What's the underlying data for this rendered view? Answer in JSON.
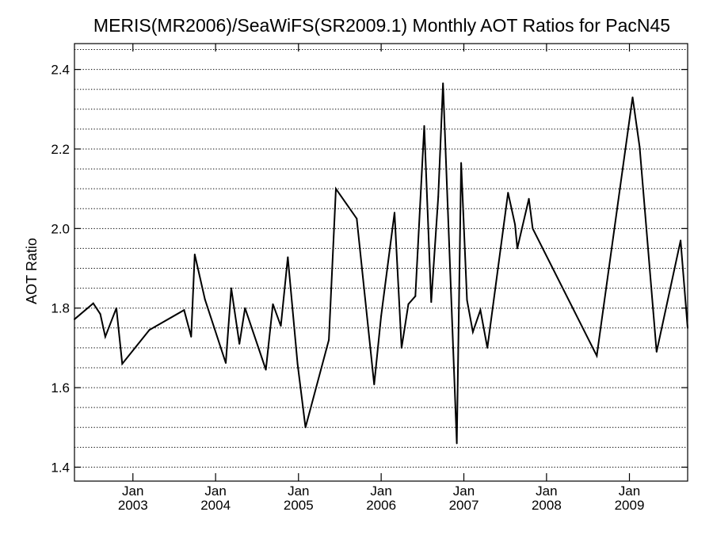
{
  "chart_data": {
    "type": "line",
    "title": "MERIS(MR2006)/SeaWiFS(SR2009.1) Monthly AOT Ratios for PacN45",
    "xlabel": "",
    "ylabel": "AOT Ratio",
    "xlim": [
      "2002-04-18",
      "2009-09-15"
    ],
    "ylim": [
      1.365,
      2.465
    ],
    "yticks": [
      1.4,
      1.6,
      1.8,
      2.0,
      2.2,
      2.4
    ],
    "ytick_labels": [
      "1.4",
      "1.6",
      "1.8",
      "2.0",
      "2.2",
      "2.4"
    ],
    "xticks": [
      "2003-01-01",
      "2004-01-01",
      "2005-01-01",
      "2006-01-01",
      "2007-01-01",
      "2008-01-01",
      "2009-01-01"
    ],
    "xtick_labels": [
      [
        "Jan",
        "2003"
      ],
      [
        "Jan",
        "2004"
      ],
      [
        "Jan",
        "2005"
      ],
      [
        "Jan",
        "2006"
      ],
      [
        "Jan",
        "2007"
      ],
      [
        "Jan",
        "2008"
      ],
      [
        "Jan",
        "2009"
      ]
    ],
    "grid": "horizontal dotted, every 0.05",
    "line_color": "#000000",
    "series": [
      {
        "x": [
          "2002-04-18",
          "2002-07-10",
          "2002-08-10",
          "2002-09-01",
          "2002-10-20",
          "2002-11-15",
          "2003-03-15",
          "2003-08-15",
          "2003-09-15",
          "2003-10-01",
          "2003-11-15",
          "2004-02-15",
          "2004-03-10",
          "2004-04-15",
          "2004-05-10",
          "2004-08-10",
          "2004-09-10",
          "2004-10-15",
          "2004-11-15",
          "2004-12-28",
          "2005-02-01",
          "2005-05-15",
          "2005-06-15",
          "2005-09-15",
          "2005-12-01",
          "2006-01-01",
          "2006-03-01",
          "2006-04-01",
          "2006-05-01",
          "2006-06-01",
          "2006-07-10",
          "2006-08-10",
          "2006-09-10",
          "2006-10-01",
          "2006-12-01",
          "2006-12-20",
          "2007-01-15",
          "2007-02-10",
          "2007-03-15",
          "2007-04-15",
          "2007-07-15",
          "2007-08-15",
          "2007-08-25",
          "2007-10-15",
          "2007-11-01",
          "2008-08-10",
          "2009-01-15",
          "2009-02-15",
          "2009-05-01",
          "2009-08-15",
          "2009-09-15"
        ],
        "y": [
          1.772,
          1.812,
          1.785,
          1.728,
          1.8,
          1.66,
          1.745,
          1.795,
          1.728,
          1.935,
          1.822,
          1.662,
          1.85,
          1.71,
          1.8,
          1.645,
          1.81,
          1.755,
          1.928,
          1.66,
          1.5,
          1.72,
          2.1,
          2.025,
          1.608,
          1.78,
          2.04,
          1.7,
          1.81,
          1.83,
          2.258,
          1.815,
          2.08,
          2.365,
          1.46,
          2.165,
          1.82,
          1.74,
          1.795,
          1.7,
          2.09,
          2.01,
          1.95,
          2.075,
          2.0,
          1.68,
          2.33,
          2.205,
          1.69,
          1.97,
          1.75
        ]
      }
    ]
  }
}
